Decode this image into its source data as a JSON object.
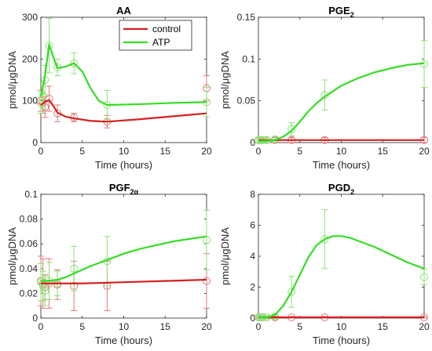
{
  "colors": {
    "control": "#d62020",
    "atp": "#33dd22",
    "atp_light": "#8ee07a",
    "control_light": "#e07a7a"
  },
  "chart_data": [
    {
      "type": "line",
      "title": "AA",
      "title_sub": "",
      "xlabel": "Time (hours)",
      "ylabel": "pmol/μgDNA",
      "xlim": [
        0,
        20
      ],
      "ylim": [
        0,
        300
      ],
      "xticks": [
        0,
        5,
        10,
        15,
        20
      ],
      "yticks": [
        0,
        100,
        200,
        300
      ],
      "ytick_labels": [
        "0",
        "100",
        "200",
        "300"
      ],
      "legend": {
        "location": "top-right",
        "entries": [
          "control",
          "ATP"
        ]
      },
      "curves": [
        {
          "name": "control",
          "x": [
            0,
            0.5,
            1,
            1.5,
            2,
            3,
            4,
            6,
            8,
            12,
            16,
            20
          ],
          "y": [
            90,
            98,
            102,
            88,
            72,
            62,
            58,
            52,
            50,
            56,
            63,
            70
          ]
        },
        {
          "name": "ATP",
          "x": [
            0,
            0.5,
            1,
            1.5,
            2,
            3,
            4,
            5,
            6,
            7,
            8,
            12,
            16,
            20
          ],
          "y": [
            110,
            160,
            235,
            205,
            178,
            182,
            190,
            170,
            130,
            100,
            90,
            92,
            95,
            97
          ]
        }
      ],
      "points": [
        {
          "series": "control",
          "x": [
            0,
            0.25,
            0.5,
            1,
            2,
            4,
            8,
            20
          ],
          "y": [
            100,
            95,
            85,
            105,
            70,
            60,
            50,
            130
          ],
          "err": [
            25,
            25,
            25,
            30,
            20,
            10,
            15,
            30
          ]
        },
        {
          "series": "ATP",
          "x": [
            0,
            0.25,
            0.5,
            1,
            2,
            4,
            8,
            20
          ],
          "y": [
            95,
            110,
            150,
            232,
            180,
            190,
            90,
            97
          ],
          "err": [
            25,
            30,
            35,
            65,
            20,
            25,
            35,
            35
          ]
        }
      ]
    },
    {
      "type": "line",
      "title": "PGE",
      "title_sub": "2",
      "xlabel": "Time (hours)",
      "ylabel": "pmol/μgDNA",
      "xlim": [
        0,
        20
      ],
      "ylim": [
        0,
        0.15
      ],
      "xticks": [
        0,
        5,
        10,
        15,
        20
      ],
      "yticks": [
        0,
        0.05,
        0.1,
        0.15
      ],
      "ytick_labels": [
        "0",
        "0.05",
        "0.1",
        "0.15"
      ],
      "curves": [
        {
          "name": "control",
          "x": [
            0,
            20
          ],
          "y": [
            0.003,
            0.003
          ]
        },
        {
          "name": "ATP",
          "x": [
            0,
            1,
            2,
            3,
            4,
            5,
            6,
            7,
            8,
            10,
            12,
            14,
            16,
            18,
            20
          ],
          "y": [
            0.002,
            0.002,
            0.003,
            0.007,
            0.014,
            0.025,
            0.037,
            0.047,
            0.055,
            0.068,
            0.077,
            0.084,
            0.089,
            0.093,
            0.095
          ]
        }
      ],
      "points": [
        {
          "series": "control",
          "x": [
            0,
            0.25,
            0.5,
            1,
            2,
            4,
            8,
            20
          ],
          "y": [
            0.003,
            0.003,
            0.003,
            0.003,
            0.003,
            0.003,
            0.003,
            0.003
          ],
          "err": [
            0.003,
            0.003,
            0.003,
            0.003,
            0.003,
            0.003,
            0.003,
            0.003
          ]
        },
        {
          "series": "ATP",
          "x": [
            0,
            0.25,
            0.5,
            1,
            2,
            4,
            8,
            20
          ],
          "y": [
            0.003,
            0.003,
            0.003,
            0.003,
            0.004,
            0.016,
            0.057,
            0.094
          ],
          "err": [
            0.003,
            0.003,
            0.004,
            0.003,
            0.003,
            0.008,
            0.018,
            0.028
          ]
        }
      ]
    },
    {
      "type": "line",
      "title": "PGF",
      "title_sub": "2α",
      "xlabel": "Time (hours)",
      "ylabel": "pmol/μgDNA",
      "xlim": [
        0,
        20
      ],
      "ylim": [
        0,
        0.1
      ],
      "xticks": [
        0,
        5,
        10,
        15,
        20
      ],
      "yticks": [
        0,
        0.02,
        0.04,
        0.06,
        0.08,
        0.1
      ],
      "ytick_labels": [
        "0",
        "0.02",
        "0.04",
        "0.06",
        "0.08",
        "0.1"
      ],
      "curves": [
        {
          "name": "control",
          "x": [
            0,
            5,
            10,
            15,
            20
          ],
          "y": [
            0.028,
            0.028,
            0.029,
            0.03,
            0.031
          ]
        },
        {
          "name": "ATP",
          "x": [
            0,
            1,
            2,
            3,
            4,
            5,
            6,
            8,
            10,
            12,
            14,
            16,
            18,
            20
          ],
          "y": [
            0.03,
            0.03,
            0.031,
            0.033,
            0.036,
            0.039,
            0.042,
            0.047,
            0.052,
            0.056,
            0.059,
            0.062,
            0.064,
            0.066
          ]
        }
      ],
      "points": [
        {
          "series": "control",
          "x": [
            0,
            0.25,
            0.5,
            1,
            2,
            4,
            8,
            20
          ],
          "y": [
            0.03,
            0.028,
            0.025,
            0.028,
            0.027,
            0.026,
            0.026,
            0.03
          ],
          "err": [
            0.02,
            0.02,
            0.01,
            0.02,
            0.012,
            0.02,
            0.02,
            0.022
          ]
        },
        {
          "series": "ATP",
          "x": [
            0,
            0.25,
            0.5,
            1,
            2,
            4,
            8,
            20
          ],
          "y": [
            0.029,
            0.026,
            0.022,
            0.03,
            0.028,
            0.04,
            0.046,
            0.063
          ],
          "err": [
            0.015,
            0.012,
            0.012,
            0.015,
            0.01,
            0.018,
            0.02,
            0.024
          ]
        }
      ]
    },
    {
      "type": "line",
      "title": "PGD",
      "title_sub": "2",
      "xlabel": "Time (hours)",
      "ylabel": "pmol/μgDNA",
      "xlim": [
        0,
        20
      ],
      "ylim": [
        0,
        8
      ],
      "xticks": [
        0,
        5,
        10,
        15,
        20
      ],
      "yticks": [
        0,
        2,
        4,
        6,
        8
      ],
      "ytick_labels": [
        "0",
        "2",
        "4",
        "6",
        "8"
      ],
      "curves": [
        {
          "name": "control",
          "x": [
            0,
            20
          ],
          "y": [
            0.05,
            0.05
          ]
        },
        {
          "name": "ATP",
          "x": [
            0,
            1,
            2,
            3,
            4,
            5,
            6,
            7,
            8,
            9,
            10,
            11,
            12,
            14,
            16,
            18,
            20
          ],
          "y": [
            0.05,
            0.05,
            0.2,
            0.8,
            1.7,
            2.8,
            3.9,
            4.7,
            5.1,
            5.3,
            5.3,
            5.2,
            5.0,
            4.6,
            4.1,
            3.6,
            3.2
          ]
        }
      ],
      "points": [
        {
          "series": "control",
          "x": [
            0,
            0.25,
            0.5,
            1,
            2,
            4,
            8,
            20
          ],
          "y": [
            0.05,
            0.05,
            0.05,
            0.05,
            0.05,
            0.05,
            0.05,
            0.05
          ],
          "err": [
            0.05,
            0.05,
            0.05,
            0.05,
            0.05,
            0.05,
            0.05,
            0.05
          ]
        },
        {
          "series": "ATP",
          "x": [
            0,
            0.25,
            0.5,
            1,
            2,
            4,
            8,
            20
          ],
          "y": [
            0.05,
            0.05,
            0.05,
            0.05,
            0.1,
            1.7,
            5.1,
            2.65
          ],
          "err": [
            0.1,
            0.1,
            0.1,
            0.1,
            0.15,
            1.0,
            1.9,
            0.5
          ]
        }
      ]
    }
  ]
}
